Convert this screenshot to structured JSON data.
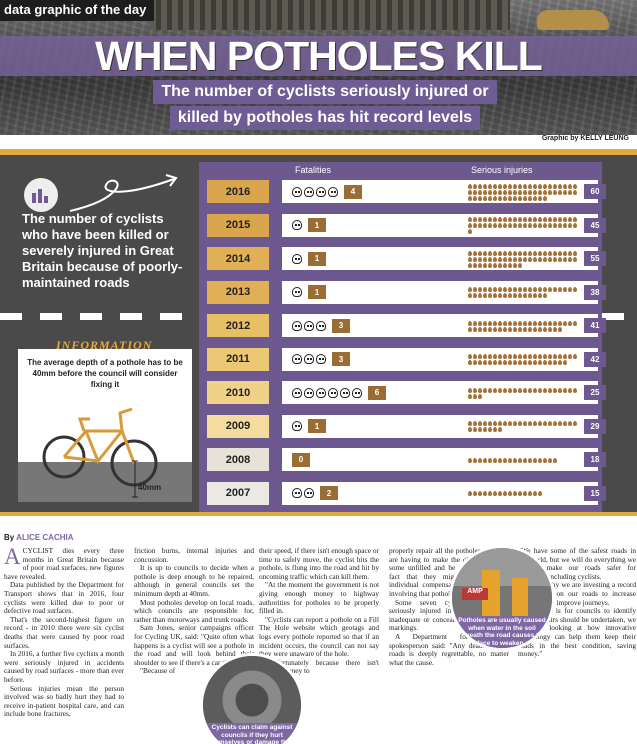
{
  "header": {
    "kicker": "data graphic of the day",
    "title": "WHEN POTHOLES KILL",
    "subtitle_line1": "The number of cyclists seriously injured or",
    "subtitle_line2": "killed by potholes has hit record levels",
    "credit": "Graphic by KELLY LEUNG"
  },
  "intro": {
    "text": "The number of cyclists who have been killed or severely injured in Great Britain because of poorly-maintained roads",
    "icon": "bar-chart-icon"
  },
  "information": {
    "label": "INFORMATION",
    "text": "The average depth of a pothole has to be 40mm before the council will consider fixing it",
    "depth_label": "40mm",
    "icon": "bicycle-icon"
  },
  "chart_data": {
    "type": "table",
    "columns": [
      "Fatalities",
      "Serious injuries"
    ],
    "rows": [
      {
        "year": "2016",
        "fatalities": 4,
        "injuries": 60,
        "highlight": "#d9a54d"
      },
      {
        "year": "2015",
        "fatalities": 1,
        "injuries": 45,
        "highlight": "#d9a54d"
      },
      {
        "year": "2014",
        "fatalities": 1,
        "injuries": 55,
        "highlight": "#e2b054"
      },
      {
        "year": "2013",
        "fatalities": 1,
        "injuries": 38,
        "highlight": "#e2b054"
      },
      {
        "year": "2012",
        "fatalities": 3,
        "injuries": 41,
        "highlight": "#e7bf64"
      },
      {
        "year": "2011",
        "fatalities": 3,
        "injuries": 42,
        "highlight": "#ebc874"
      },
      {
        "year": "2010",
        "fatalities": 6,
        "injuries": 25,
        "highlight": "#efd187"
      },
      {
        "year": "2009",
        "fatalities": 1,
        "injuries": 29,
        "highlight": "#f3dc9e"
      },
      {
        "year": "2008",
        "fatalities": 0,
        "injuries": 18,
        "highlight": "#e6e2d8"
      },
      {
        "year": "2007",
        "fatalities": 2,
        "injuries": 15,
        "highlight": "#ebe9e4"
      }
    ]
  },
  "article": {
    "byline_prefix": "By",
    "byline_name": "ALICE CACHIA",
    "drop_cap": "A",
    "col1": [
      "CYCLIST dies every three months in Great Britain because of poor road surfaces, new figures have revealed.",
      "Data published by the Department for Transport shows that in 2016, four cyclists were killed due to poor or defective road surfaces.",
      "That's the second-highest figure on record - in 2010 there were six cyclist deaths that were caused by poor road surfaces.",
      "In 2016, a further five cyclists a month were seriously injured in accidents caused by road surfaces - more than ever before.",
      "Serious injuries mean the person involved was so badly hurt they had to receive in-patient hospital care, and can include bone fractures,"
    ],
    "col2": [
      "friction burns, internal injuries and concussion.",
      "It is up to councils to decide when a pothole is deep enough to be repaired, although in general councils set the minimum depth at 40mm.",
      "Most potholes develop on local roads, which councils are responsible for, rather than motorways and trunk roads.",
      "Sam Jones, senior campaigns officer for Cycling UK, said: \"Quite often what happens is a cyclist will see a pothole in the road and will look behind their shoulder to see if there's a car there.",
      "\"Because of"
    ],
    "col3": [
      "their speed, if there isn't enough space or time to safely move, the cyclist hits the pothole, is flung into the road and hit by oncoming traffic which can kill them.",
      "\"At the moment the government is not giving enough money to highway authorities for potholes to be properly filled in.",
      "\"Cyclists can report a pothole on a Fill The Hole website which geotags and logs every pothole reported so that if an incident occurs, the council can not say they were unaware of the hole.",
      "\"Unfortunately because there isn't enough money to"
    ],
    "col4": [
      "properly repair all the potholes, councils are having to make the choice to leave some unfilled and be prepared for the fact that they might have to pay individual compensation if an incident involving that pothole occurs.\"",
      "Some seven cyclists were also seriously injured in 2016 because of inadequate or concealed signs and road markings.",
      "A Department for Transport spokesperson said: \"Any death on our roads is deeply regrettable, no matter what the cause."
    ],
    "col5": [
      "\"We have some of the safest roads in the world, but we will do everything we can to make our roads safer for everyone, including cyclists.",
      "\"That's why we are investing a record £23 billion on our roads to increase capacity and improve journeys.",
      "\"While it is for councils to identify where repairs should be undertaken, we are also looking at how innovative technology can help them keep their roads in the best condition, saving money.\""
    ]
  },
  "photos": {
    "caption1": "Cyclists can claim against councils if they hurt themselves or damage their bikes because of potholes",
    "caption2": "Potholes are usually caused when water in the soil beneath the road causes the surface to weaken and expand",
    "sign_text": "AMP"
  },
  "colors": {
    "purple": "#6d5890",
    "gold": "#e2a93f",
    "skull_box": "#9a6d34",
    "drop": "#a5733a",
    "dark": "#4a4a4a"
  }
}
